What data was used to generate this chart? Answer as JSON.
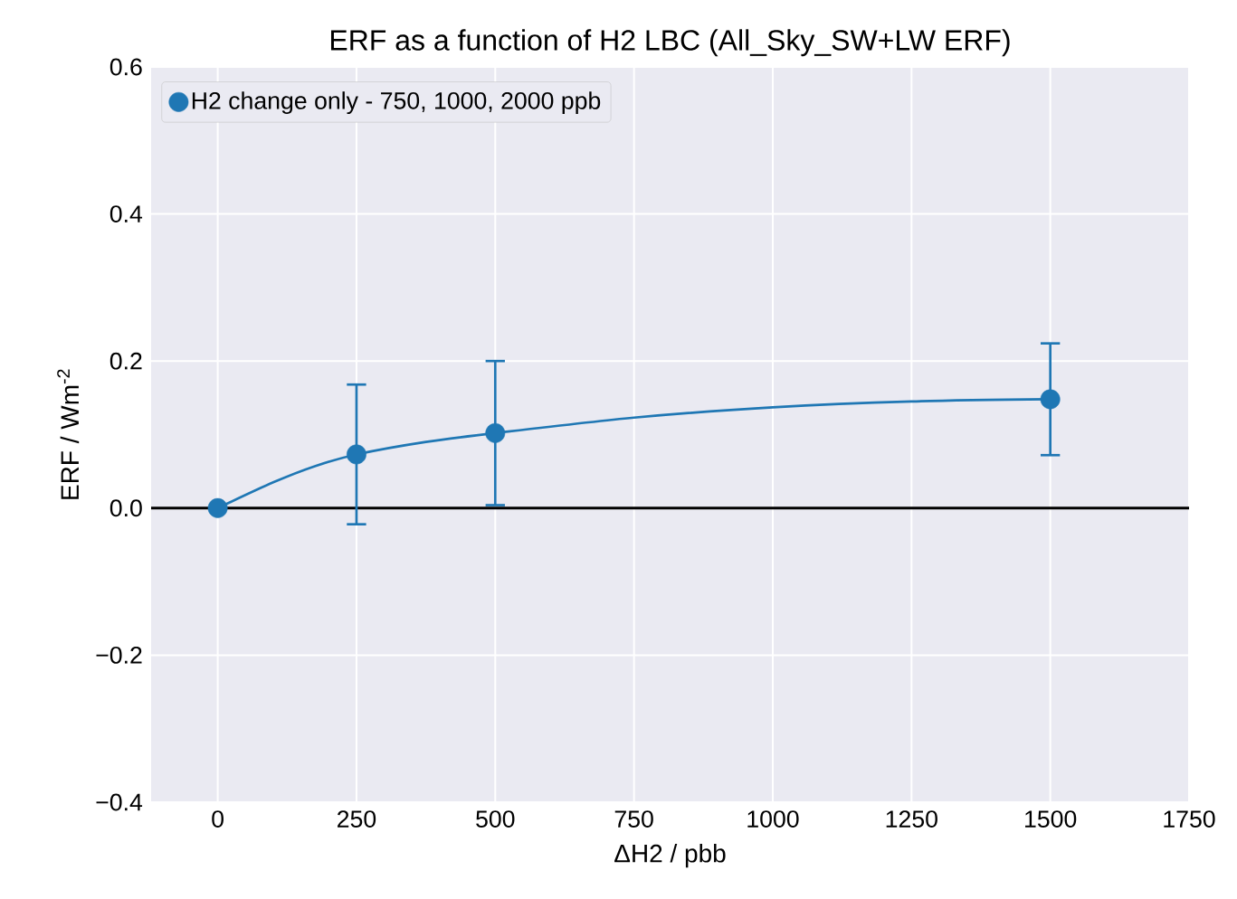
{
  "chart_data": {
    "type": "scatter",
    "title": "ERF as a function of H2 LBC (All_Sky_SW+LW ERF)",
    "xlabel": "ΔH2 / pbb",
    "ylabel": "ERF / Wm$^{-2}$",
    "xlim": [
      -120,
      1750
    ],
    "ylim": [
      -0.4,
      0.6
    ],
    "xticks": [
      0,
      250,
      500,
      750,
      1000,
      1250,
      1500,
      1750
    ],
    "yticks": [
      {
        "value": -0.4,
        "label": "−0.4"
      },
      {
        "value": -0.2,
        "label": "−0.2"
      },
      {
        "value": 0,
        "label": "0.0"
      },
      0.2,
      0.4,
      0.6
    ],
    "series": [
      {
        "type": "line",
        "color": "#1f77b4",
        "x": [
          0,
          100,
          175,
          250,
          375,
          500,
          750,
          1000,
          1250,
          1500
        ],
        "values": [
          0,
          0.035,
          0.057,
          0.073,
          0.09,
          0.102,
          0.123,
          0.137,
          0.145,
          0.148
        ],
        "marker": "none"
      },
      {
        "name": "H2 change only - 750, 1000, 2000 ppb",
        "color": "#1f77b4",
        "x": [
          0,
          250,
          500,
          1500
        ],
        "values": [
          0,
          0.073,
          0.102,
          0.148
        ],
        "errors": [
          null,
          0.095,
          0.098,
          0.076
        ],
        "marker": "circle"
      }
    ],
    "ref_lines": [
      {
        "axis": "y",
        "value": 0,
        "color": "#000000"
      }
    ],
    "grid": true,
    "legend": "top left"
  }
}
